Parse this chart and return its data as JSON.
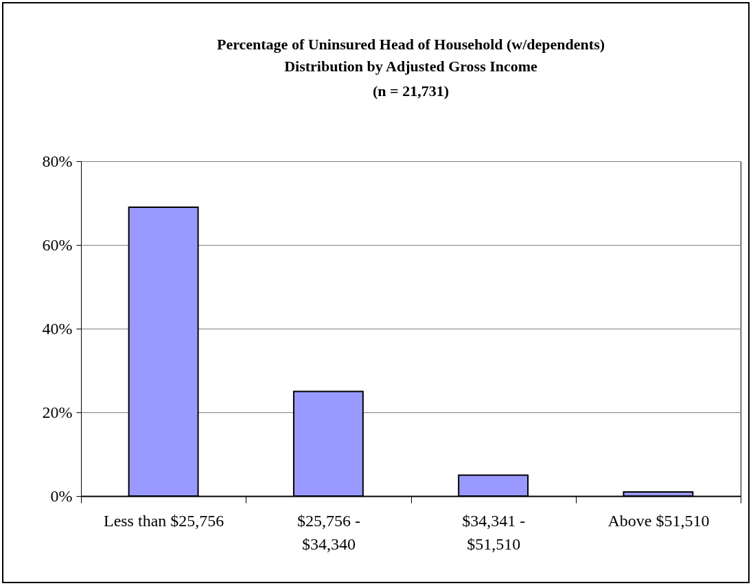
{
  "chart_data": {
    "type": "bar",
    "title": "Percentage of Uninsured Head of Household (w/dependents)",
    "subtitle": "Distribution by Adjusted Gross Income",
    "annotations": [
      "(n = 21,731)"
    ],
    "categories": [
      "Less than $25,756",
      "$25,756 - $34,340",
      "$34,341 - $51,510",
      "Above $51,510"
    ],
    "values": [
      69,
      25,
      5,
      1
    ],
    "color": "#9999ff",
    "ylim": [
      0,
      80
    ],
    "yticks": [
      {
        "value": 0,
        "label": "0%"
      },
      {
        "value": 20,
        "label": "20%"
      },
      {
        "value": 40,
        "label": "40%"
      },
      {
        "value": 60,
        "label": "60%"
      },
      {
        "value": 80,
        "label": "80%"
      }
    ],
    "grid": "y"
  }
}
